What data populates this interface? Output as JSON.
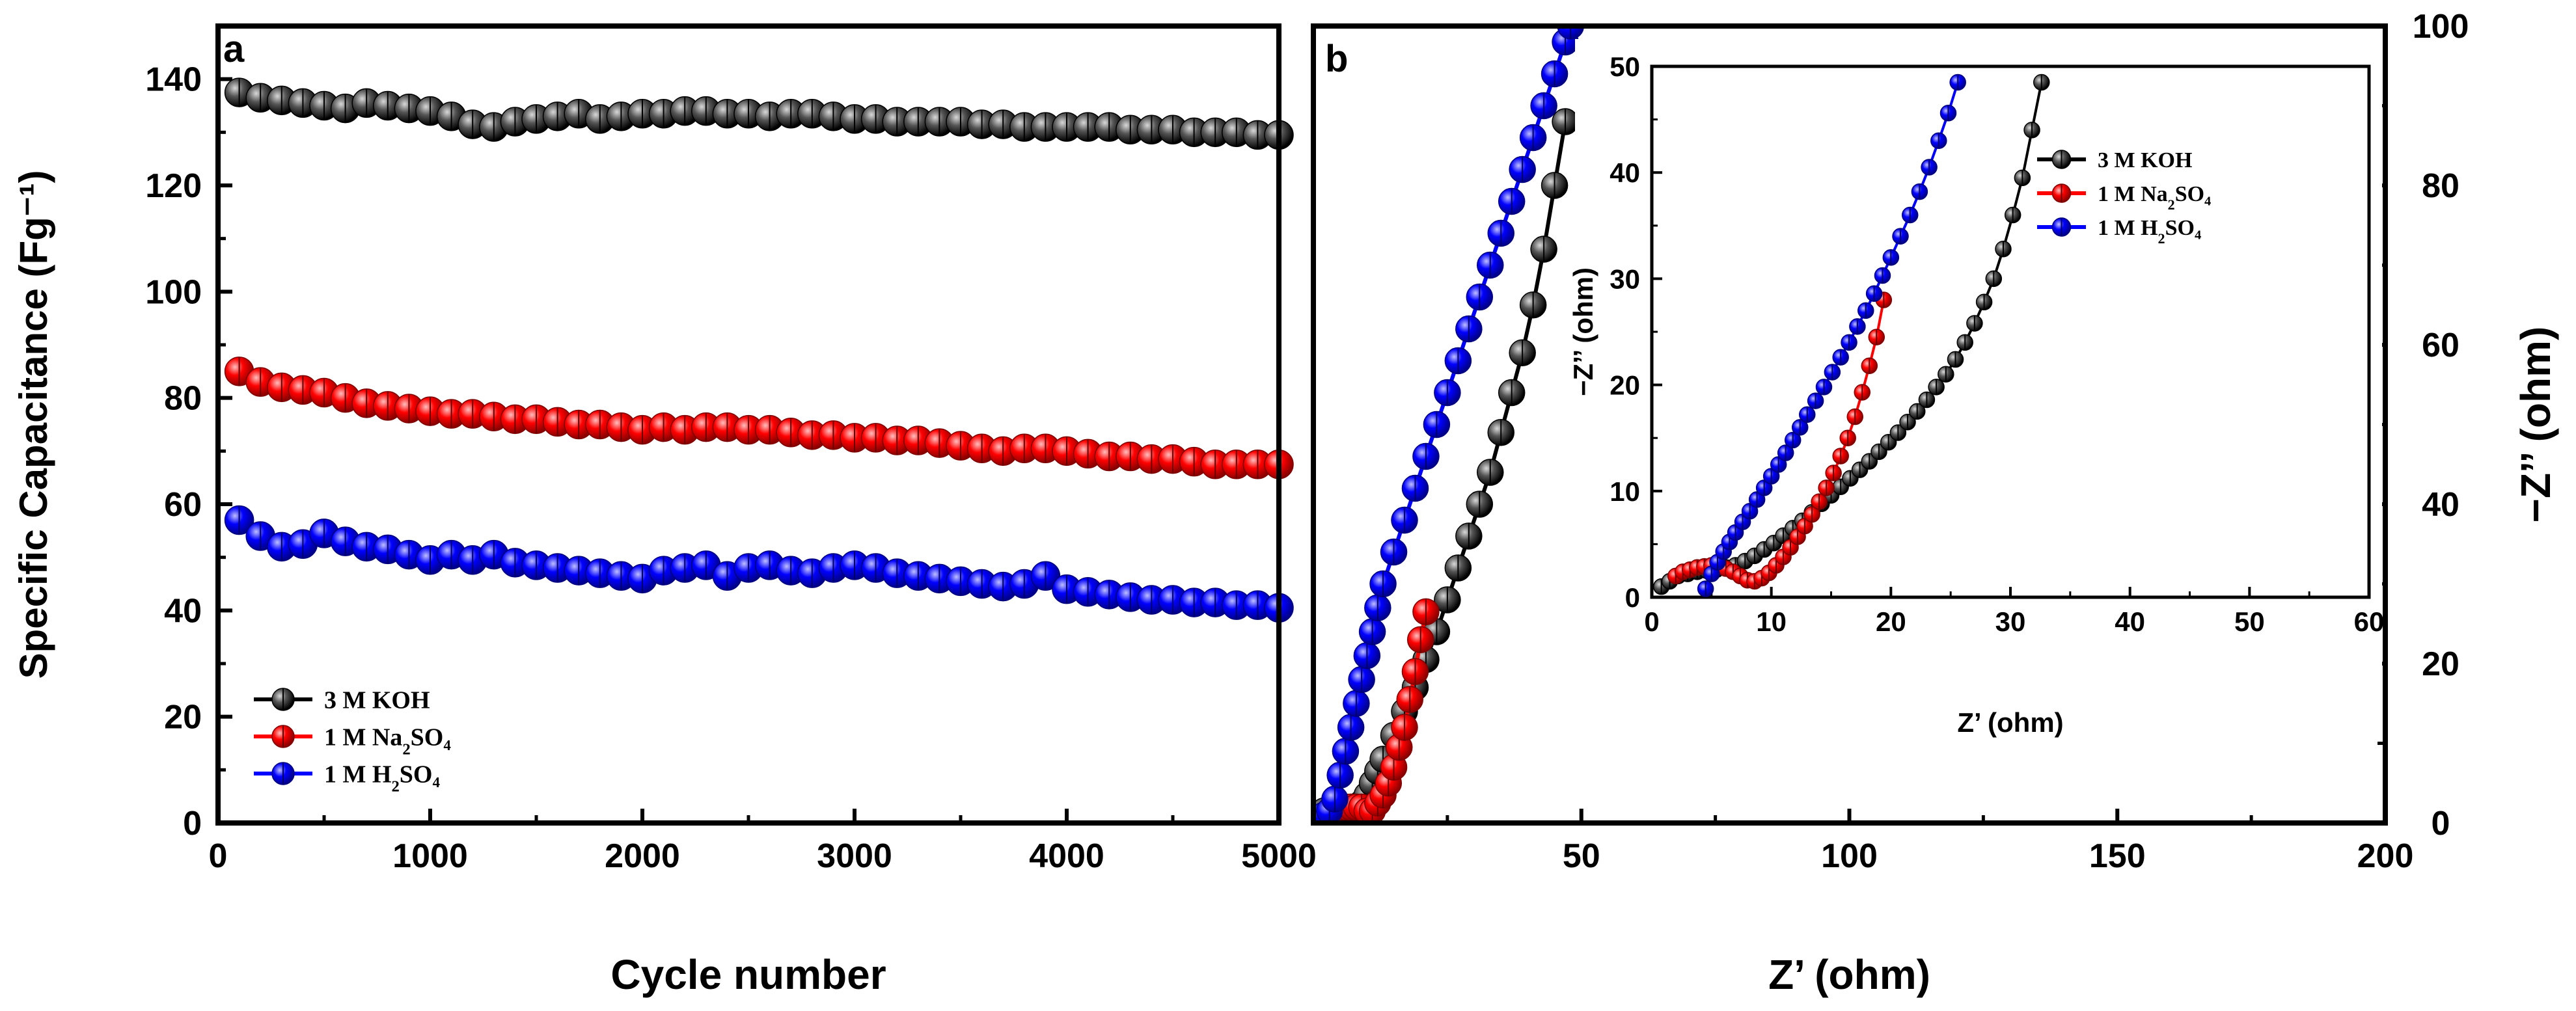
{
  "chart_data": [
    {
      "type": "line",
      "panel_label": "a",
      "xlabel": "Cycle number",
      "ylabel": "Specific Capacitance (Fg⁻¹)",
      "xlim": [
        0,
        5000
      ],
      "ylim": [
        0,
        150
      ],
      "xticks": [
        0,
        1000,
        2000,
        3000,
        4000,
        5000
      ],
      "yticks": [
        0,
        20,
        40,
        60,
        80,
        100,
        120,
        140
      ],
      "legend_position": "bottom-left",
      "series": [
        {
          "name": "3 M KOH",
          "legend": {
            "pre": "3 M KOH",
            "sub": "",
            "post": ""
          },
          "color": "#000000",
          "x": [
            100,
            200,
            300,
            400,
            500,
            600,
            700,
            800,
            900,
            1000,
            1100,
            1200,
            1300,
            1400,
            1500,
            1600,
            1700,
            1800,
            1900,
            2000,
            2100,
            2200,
            2300,
            2400,
            2500,
            2600,
            2700,
            2800,
            2900,
            3000,
            3100,
            3200,
            3300,
            3400,
            3500,
            3600,
            3700,
            3800,
            3900,
            4000,
            4100,
            4200,
            4300,
            4400,
            4500,
            4600,
            4700,
            4800,
            4900,
            5000
          ],
          "y": [
            137.5,
            136.5,
            136,
            135.5,
            135,
            134.5,
            135.5,
            135,
            134.5,
            134,
            133,
            131.5,
            131,
            132,
            132.5,
            133,
            133.5,
            132.5,
            133,
            133.5,
            133.5,
            134,
            134,
            133.5,
            133.5,
            133,
            133.5,
            133.5,
            133,
            132.5,
            132.5,
            132,
            132,
            132,
            132,
            131.5,
            131.5,
            131,
            131,
            131,
            131,
            131,
            130.5,
            130.5,
            130.5,
            130,
            130,
            130,
            129.5,
            129.5
          ]
        },
        {
          "name": "1 M Na2SO4",
          "legend": {
            "pre": "1 M Na",
            "sub": "2",
            "post": "SO₄"
          },
          "color": "#ff0000",
          "x": [
            100,
            200,
            300,
            400,
            500,
            600,
            700,
            800,
            900,
            1000,
            1100,
            1200,
            1300,
            1400,
            1500,
            1600,
            1700,
            1800,
            1900,
            2000,
            2100,
            2200,
            2300,
            2400,
            2500,
            2600,
            2700,
            2800,
            2900,
            3000,
            3100,
            3200,
            3300,
            3400,
            3500,
            3600,
            3700,
            3800,
            3900,
            4000,
            4100,
            4200,
            4300,
            4400,
            4500,
            4600,
            4700,
            4800,
            4900,
            5000
          ],
          "y": [
            85,
            83,
            82,
            81.5,
            81,
            80,
            79,
            78.5,
            78,
            77.5,
            77,
            77,
            76.5,
            76,
            76,
            75.5,
            75,
            75,
            74.5,
            74,
            74.5,
            74,
            74.5,
            74.5,
            74,
            74,
            73.5,
            73,
            73,
            72.5,
            72.5,
            72,
            72,
            71.5,
            71,
            70.5,
            70,
            70.5,
            70.5,
            70,
            69.5,
            69,
            69,
            68.5,
            68.5,
            68,
            67.5,
            67.5,
            67.5,
            67.5
          ]
        },
        {
          "name": "1 M H2SO4",
          "legend": {
            "pre": "1 M H",
            "sub": "2",
            "post": "SO₄"
          },
          "color": "#0000ff",
          "x": [
            100,
            200,
            300,
            400,
            500,
            600,
            700,
            800,
            900,
            1000,
            1100,
            1200,
            1300,
            1400,
            1500,
            1600,
            1700,
            1800,
            1900,
            2000,
            2100,
            2200,
            2300,
            2400,
            2500,
            2600,
            2700,
            2800,
            2900,
            3000,
            3100,
            3200,
            3300,
            3400,
            3500,
            3600,
            3700,
            3800,
            3900,
            4000,
            4100,
            4200,
            4300,
            4400,
            4500,
            4600,
            4700,
            4800,
            4900,
            5000
          ],
          "y": [
            57,
            54,
            52,
            52.5,
            54.5,
            53,
            52,
            51.5,
            50.5,
            49.5,
            50.5,
            49.5,
            50.5,
            49,
            48.5,
            48,
            47.5,
            47,
            46.5,
            46,
            47.5,
            48,
            48.5,
            46.5,
            48,
            48.5,
            47.5,
            47,
            48,
            48.5,
            48,
            47,
            46.5,
            46,
            45.5,
            45,
            44.5,
            45,
            46.5,
            44,
            43.5,
            43,
            42.5,
            42,
            42,
            41.5,
            41.5,
            41,
            41,
            40.5
          ]
        }
      ]
    },
    {
      "type": "scatter",
      "panel_label": "b",
      "xlabel": "Z’ (ohm)",
      "ylabel": "−Z’’ (ohm)",
      "xlim": [
        0,
        200
      ],
      "ylim": [
        0,
        100
      ],
      "xticks": [
        50,
        100,
        150,
        200
      ],
      "yticks": [
        0,
        20,
        40,
        60,
        80,
        100
      ],
      "y_axis_side": "right",
      "series": [
        {
          "name": "3 M KOH",
          "color": "#000000",
          "x": [
            1,
            2,
            3,
            4,
            5,
            6,
            7,
            8,
            9,
            10,
            11,
            12,
            13,
            15,
            17,
            19,
            21,
            23,
            25,
            27,
            29,
            31,
            33,
            35,
            37,
            39,
            41,
            43,
            45,
            47
          ],
          "y": [
            1,
            1.5,
            1.5,
            1.5,
            1.5,
            1.5,
            1.5,
            2,
            2.5,
            3.5,
            5,
            6.5,
            8,
            11,
            14,
            17,
            20.5,
            24,
            28,
            32,
            36,
            40,
            44,
            49,
            54,
            59,
            65,
            72,
            80,
            88
          ]
        },
        {
          "name": "1 M Na2SO4",
          "color": "#ff0000",
          "x": [
            4,
            5,
            6,
            7,
            8,
            9,
            10,
            11,
            12,
            13,
            14,
            15,
            16,
            17,
            18,
            19,
            20,
            21
          ],
          "y": [
            1.5,
            2,
            2,
            2,
            2,
            2,
            1.5,
            1.5,
            2.5,
            3.5,
            5,
            7,
            9.5,
            12,
            15.5,
            19,
            23,
            26.5
          ]
        },
        {
          "name": "1 M H2SO4",
          "color": "#0000ff",
          "x": [
            2,
            3,
            4,
            5,
            6,
            7,
            8,
            9,
            10,
            11,
            12,
            13,
            15,
            17,
            19,
            21,
            23,
            25,
            27,
            29,
            31,
            33,
            35,
            37,
            39,
            41,
            43,
            45,
            47,
            48
          ],
          "y": [
            1,
            1.5,
            3,
            6,
            9,
            12,
            15,
            18,
            21,
            24,
            27,
            30,
            34,
            38,
            42,
            46,
            50,
            54,
            58,
            62,
            66,
            70,
            74,
            78,
            82,
            86,
            90,
            94,
            98,
            100
          ]
        }
      ],
      "inset": {
        "type": "scatter",
        "xlabel": "Z’ (ohm)",
        "ylabel": "−Z’’ (ohm)",
        "xlim": [
          0,
          60
        ],
        "ylim": [
          0,
          50
        ],
        "xticks": [
          0,
          10,
          20,
          30,
          40,
          50,
          60
        ],
        "yticks": [
          0,
          10,
          20,
          30,
          40,
          50
        ],
        "legend_position": "top-right",
        "series": [
          {
            "name": "3 M KOH",
            "legend": {
              "pre": "3 M KOH",
              "sub": "",
              "post": ""
            },
            "color": "#000000",
            "x": [
              0.8,
              1.5,
              2.2,
              3,
              3.8,
              4.6,
              5.4,
              6.2,
              7,
              7.8,
              8.6,
              9.4,
              10.2,
              11,
              11.8,
              12.6,
              13.4,
              14.2,
              15,
              15.8,
              16.6,
              17.4,
              18.2,
              19,
              19.8,
              20.6,
              21.4,
              22.2,
              23,
              23.8,
              24.6,
              25.4,
              26.2,
              27,
              27.8,
              28.6,
              29.4,
              30.2,
              31,
              31.8,
              32.6
            ],
            "y": [
              1,
              1.5,
              2,
              2.2,
              2.4,
              2.5,
              2.6,
              2.8,
              3,
              3.4,
              3.9,
              4.5,
              5.1,
              5.8,
              6.5,
              7.2,
              8,
              8.8,
              9.6,
              10.4,
              11.2,
              12,
              12.8,
              13.7,
              14.6,
              15.5,
              16.5,
              17.5,
              18.6,
              19.8,
              21,
              22.4,
              24,
              25.8,
              27.8,
              30,
              32.8,
              36,
              39.5,
              44,
              48.5
            ]
          },
          {
            "name": "1 M Na2SO4",
            "legend": {
              "pre": "1 M Na",
              "sub": "2",
              "post": "SO₄"
            },
            "color": "#ff0000",
            "x": [
              2,
              2.6,
              3.2,
              3.8,
              4.4,
              5,
              5.6,
              6.2,
              6.8,
              7.4,
              8,
              8.6,
              9.2,
              9.8,
              10.4,
              11,
              11.6,
              12.2,
              12.8,
              13.4,
              14,
              14.6,
              15.2,
              15.8,
              16.4,
              17,
              17.6,
              18.2,
              18.8,
              19.4
            ],
            "y": [
              2,
              2.4,
              2.6,
              2.8,
              2.9,
              3,
              2.9,
              2.7,
              2.4,
              2,
              1.6,
              1.5,
              1.8,
              2.3,
              3,
              3.8,
              4.7,
              5.7,
              6.7,
              7.8,
              9,
              10.3,
              11.7,
              13.3,
              15,
              17,
              19.3,
              21.8,
              24.5,
              28
            ]
          },
          {
            "name": "1 M H2SO4",
            "legend": {
              "pre": "1 M H",
              "sub": "2",
              "post": "SO₄"
            },
            "color": "#0000ff",
            "x": [
              4.5,
              5,
              5.5,
              6,
              6.5,
              7,
              7.6,
              8.2,
              8.8,
              9.4,
              10,
              10.6,
              11.2,
              11.8,
              12.4,
              13,
              13.7,
              14.4,
              15.1,
              15.8,
              16.5,
              17.2,
              17.9,
              18.6,
              19.3,
              20,
              20.8,
              21.6,
              22.4,
              23.2,
              24,
              24.8,
              25.6
            ],
            "y": [
              0.8,
              2.2,
              3.3,
              4.3,
              5.2,
              6.1,
              7.1,
              8.1,
              9.2,
              10.3,
              11.4,
              12.5,
              13.6,
              14.8,
              16,
              17.2,
              18.5,
              19.8,
              21.2,
              22.6,
              24,
              25.5,
              27,
              28.6,
              30.3,
              32,
              34,
              36,
              38.2,
              40.5,
              43,
              45.6,
              48.5
            ]
          }
        ]
      }
    }
  ]
}
